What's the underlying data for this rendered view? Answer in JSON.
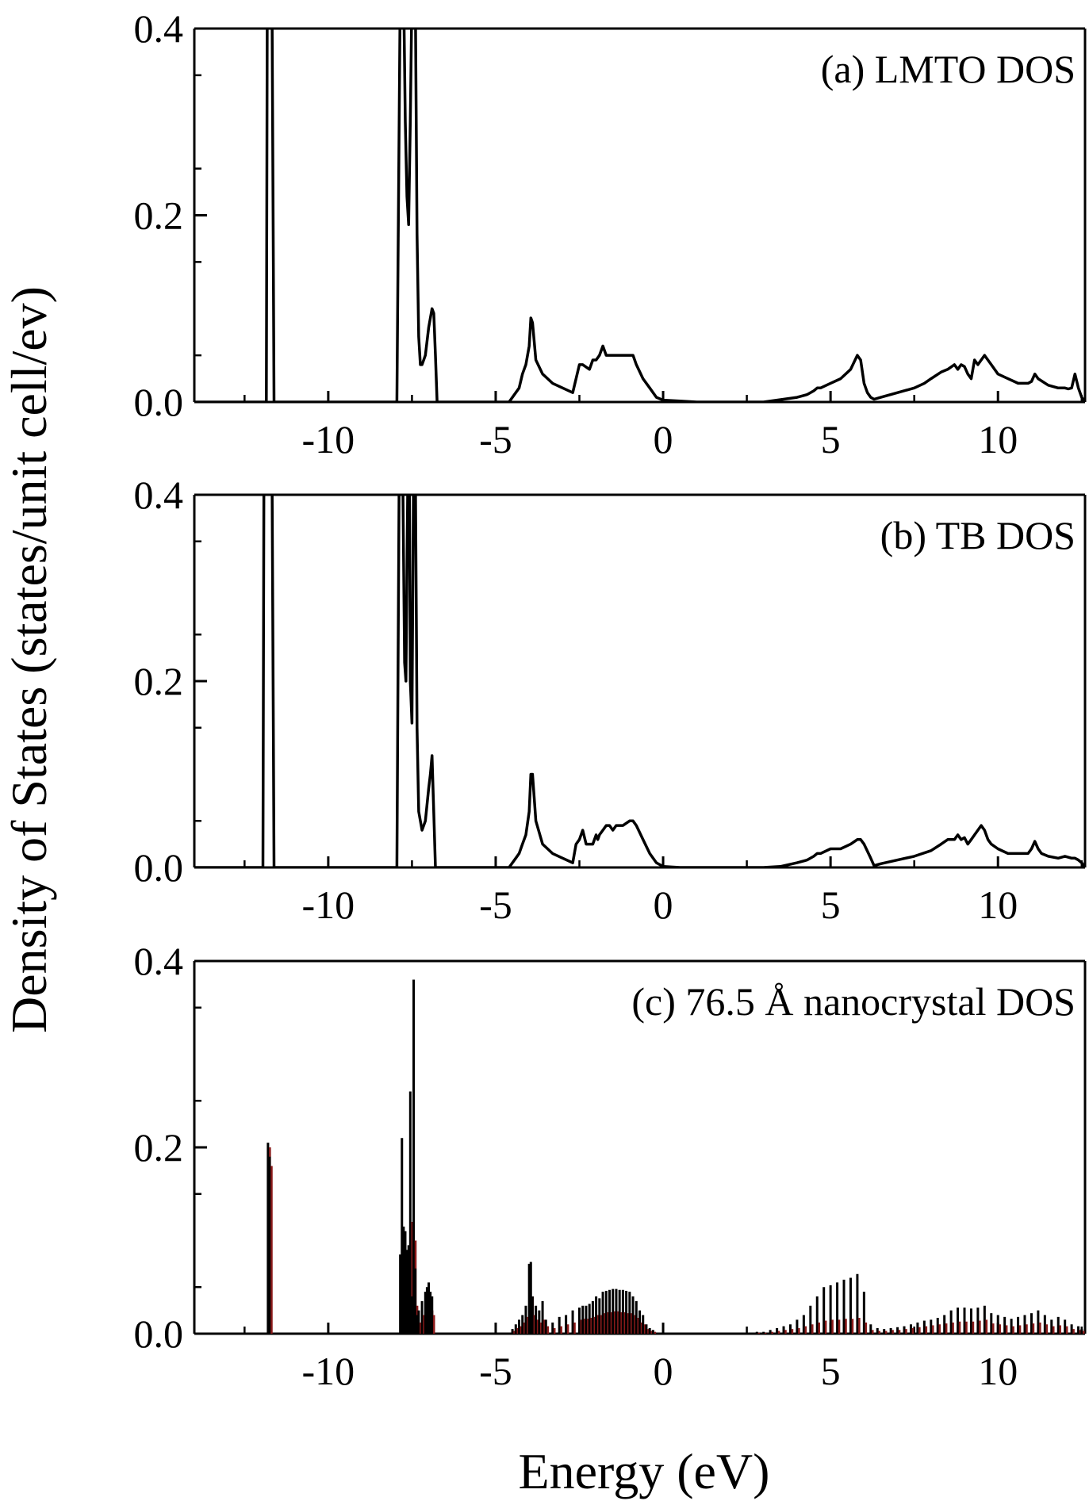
{
  "chart_data": {
    "type": "line",
    "title": "",
    "xlabel": "Energy (eV)",
    "ylabel": "Density of States (states/unit cell/ev)",
    "xlim": [
      -14,
      12.6
    ],
    "ylim": [
      0,
      0.4
    ],
    "x_ticks": [
      -10,
      -5,
      0,
      5,
      10
    ],
    "x_tick_labels": [
      "-10",
      "-5",
      "0",
      "5",
      "10"
    ],
    "y_ticks": [
      0,
      0.2,
      0.4
    ],
    "y_tick_labels": [
      "0.0",
      "0.2",
      "0.4"
    ],
    "grid": false,
    "line_color": "#000000",
    "secondary_color": "#8b1a1a",
    "panels": [
      {
        "label": "(a) LMTO DOS",
        "kind": "line",
        "x": [
          -14,
          -11.85,
          -11.82,
          -11.78,
          -11.72,
          -11.68,
          -11.62,
          -7.95,
          -7.85,
          -7.8,
          -7.75,
          -7.7,
          -7.65,
          -7.6,
          -7.55,
          -7.5,
          -7.45,
          -7.4,
          -7.35,
          -7.3,
          -7.25,
          -7.2,
          -7.1,
          -7.0,
          -6.9,
          -6.85,
          -6.8,
          -6.75,
          -4.6,
          -4.4,
          -4.3,
          -4.2,
          -4.1,
          -4.0,
          -3.95,
          -3.9,
          -3.8,
          -3.6,
          -3.3,
          -3.0,
          -2.7,
          -2.5,
          -2.4,
          -2.2,
          -2.1,
          -2.0,
          -1.9,
          -1.8,
          -1.7,
          -1.5,
          -1.2,
          -0.9,
          -0.8,
          -0.6,
          -0.4,
          -0.2,
          0.0,
          0.5,
          1.0,
          2.0,
          3.0,
          4.0,
          4.3,
          4.5,
          4.6,
          4.7,
          5.0,
          5.3,
          5.6,
          5.8,
          5.9,
          6.0,
          6.1,
          6.2,
          6.3,
          6.5,
          7.0,
          7.5,
          7.8,
          8.0,
          8.3,
          8.5,
          8.7,
          8.8,
          8.9,
          9.0,
          9.1,
          9.2,
          9.3,
          9.4,
          9.5,
          9.6,
          9.8,
          10.0,
          10.3,
          10.6,
          10.9,
          11.0,
          11.1,
          11.2,
          11.5,
          11.8,
          12.0,
          12.1,
          12.2,
          12.3,
          12.4,
          12.5,
          12.6
        ],
        "y": [
          0,
          0,
          0.5,
          0.5,
          0.5,
          0.5,
          0,
          0,
          0.45,
          0.45,
          0.45,
          0.3,
          0.22,
          0.19,
          0.3,
          0.45,
          0.45,
          0.45,
          0.18,
          0.07,
          0.04,
          0.04,
          0.05,
          0.08,
          0.1,
          0.095,
          0.05,
          0,
          0,
          0.01,
          0.015,
          0.03,
          0.04,
          0.06,
          0.09,
          0.085,
          0.045,
          0.03,
          0.02,
          0.015,
          0.01,
          0.04,
          0.04,
          0.035,
          0.045,
          0.045,
          0.05,
          0.06,
          0.05,
          0.05,
          0.05,
          0.05,
          0.04,
          0.025,
          0.015,
          0.005,
          0.002,
          0.001,
          0,
          0,
          0,
          0.005,
          0.008,
          0.012,
          0.015,
          0.015,
          0.02,
          0.025,
          0.035,
          0.05,
          0.045,
          0.02,
          0.01,
          0.005,
          0.003,
          0.005,
          0.01,
          0.015,
          0.02,
          0.025,
          0.032,
          0.035,
          0.04,
          0.035,
          0.04,
          0.038,
          0.03,
          0.025,
          0.045,
          0.04,
          0.045,
          0.05,
          0.04,
          0.03,
          0.025,
          0.02,
          0.02,
          0.022,
          0.03,
          0.025,
          0.018,
          0.015,
          0.015,
          0.014,
          0.015,
          0.03,
          0.015,
          0.005,
          0
        ]
      },
      {
        "label": "(b) TB DOS",
        "kind": "line",
        "x": [
          -14,
          -11.95,
          -11.92,
          -11.85,
          -11.8,
          -11.72,
          -11.68,
          -11.62,
          -7.95,
          -7.88,
          -7.82,
          -7.78,
          -7.72,
          -7.68,
          -7.62,
          -7.58,
          -7.55,
          -7.5,
          -7.45,
          -7.4,
          -7.35,
          -7.3,
          -7.2,
          -7.1,
          -7.0,
          -6.95,
          -6.9,
          -6.8,
          -4.6,
          -4.4,
          -4.3,
          -4.2,
          -4.1,
          -4.0,
          -3.95,
          -3.9,
          -3.8,
          -3.6,
          -3.3,
          -3.0,
          -2.7,
          -2.6,
          -2.5,
          -2.4,
          -2.3,
          -2.1,
          -2.0,
          -1.95,
          -1.9,
          -1.8,
          -1.7,
          -1.6,
          -1.5,
          -1.4,
          -1.2,
          -1.0,
          -0.9,
          -0.8,
          -0.6,
          -0.4,
          -0.2,
          0.0,
          0.5,
          1.0,
          2.0,
          3.0,
          3.5,
          4.0,
          4.3,
          4.5,
          4.6,
          4.7,
          5.0,
          5.3,
          5.6,
          5.8,
          5.9,
          6.0,
          6.2,
          6.3,
          6.5,
          7.0,
          7.5,
          8.0,
          8.3,
          8.5,
          8.7,
          8.8,
          8.9,
          9.0,
          9.1,
          9.2,
          9.3,
          9.4,
          9.5,
          9.6,
          9.7,
          9.8,
          10.0,
          10.3,
          10.6,
          10.9,
          11.0,
          11.1,
          11.2,
          11.3,
          11.5,
          11.8,
          12.0,
          12.2,
          12.3,
          12.4,
          12.5,
          12.6
        ],
        "y": [
          0,
          0,
          0.5,
          0.5,
          0.5,
          0.5,
          0.5,
          0,
          0,
          0.45,
          0.45,
          0.45,
          0.22,
          0.2,
          0.45,
          0.45,
          0.2,
          0.155,
          0.45,
          0.45,
          0.15,
          0.06,
          0.04,
          0.05,
          0.085,
          0.1,
          0.12,
          0,
          0,
          0.01,
          0.015,
          0.025,
          0.035,
          0.06,
          0.1,
          0.1,
          0.05,
          0.025,
          0.015,
          0.01,
          0.005,
          0.025,
          0.03,
          0.04,
          0.025,
          0.025,
          0.035,
          0.03,
          0.035,
          0.04,
          0.045,
          0.045,
          0.04,
          0.045,
          0.045,
          0.05,
          0.05,
          0.045,
          0.03,
          0.015,
          0.005,
          0.001,
          0,
          0,
          0,
          0,
          0.001,
          0.005,
          0.008,
          0.012,
          0.015,
          0.015,
          0.02,
          0.02,
          0.025,
          0.03,
          0.03,
          0.025,
          0.01,
          0.002,
          0.004,
          0.008,
          0.012,
          0.018,
          0.025,
          0.03,
          0.03,
          0.035,
          0.03,
          0.032,
          0.025,
          0.03,
          0.035,
          0.04,
          0.045,
          0.04,
          0.03,
          0.025,
          0.02,
          0.015,
          0.015,
          0.015,
          0.02,
          0.028,
          0.02,
          0.015,
          0.012,
          0.01,
          0.012,
          0.01,
          0.01,
          0.008,
          0.005,
          0
        ]
      },
      {
        "label": "(c) 76.5 Å nanocrystal DOS",
        "kind": "sticks",
        "x": [
          -11.8,
          -11.75,
          -7.85,
          -7.8,
          -7.75,
          -7.7,
          -7.65,
          -7.6,
          -7.55,
          -7.5,
          -7.45,
          -7.4,
          -7.35,
          -7.3,
          -7.2,
          -7.1,
          -7.05,
          -7.0,
          -6.95,
          -6.9,
          -4.5,
          -4.4,
          -4.3,
          -4.2,
          -4.1,
          -4.0,
          -3.95,
          -3.9,
          -3.8,
          -3.7,
          -3.6,
          -3.5,
          -3.3,
          -3.1,
          -2.9,
          -2.7,
          -2.5,
          -2.4,
          -2.3,
          -2.2,
          -2.1,
          -2.0,
          -1.9,
          -1.8,
          -1.7,
          -1.6,
          -1.5,
          -1.4,
          -1.3,
          -1.2,
          -1.1,
          -1.0,
          -0.9,
          -0.8,
          -0.7,
          -0.6,
          -0.5,
          -0.4,
          -0.3,
          2.8,
          3.0,
          3.2,
          3.4,
          3.6,
          3.8,
          4.0,
          4.2,
          4.4,
          4.6,
          4.8,
          5.0,
          5.2,
          5.4,
          5.6,
          5.8,
          6.0,
          6.2,
          6.4,
          6.6,
          6.8,
          7.0,
          7.2,
          7.4,
          7.6,
          7.8,
          8.0,
          8.2,
          8.4,
          8.6,
          8.8,
          9.0,
          9.2,
          9.4,
          9.6,
          9.8,
          10.0,
          10.2,
          10.4,
          10.6,
          10.8,
          11.0,
          11.2,
          11.4,
          11.6,
          11.8,
          12.0,
          12.2,
          12.4,
          12.5
        ],
        "y": [
          0.205,
          0.19,
          0.085,
          0.21,
          0.115,
          0.11,
          0.09,
          0.095,
          0.26,
          0.04,
          0.38,
          0.07,
          0.02,
          0.025,
          0.035,
          0.045,
          0.05,
          0.055,
          0.045,
          0.04,
          0.005,
          0.01,
          0.015,
          0.02,
          0.03,
          0.075,
          0.077,
          0.04,
          0.03,
          0.025,
          0.035,
          0.015,
          0.012,
          0.018,
          0.02,
          0.025,
          0.028,
          0.03,
          0.03,
          0.032,
          0.035,
          0.04,
          0.038,
          0.045,
          0.046,
          0.047,
          0.048,
          0.048,
          0.047,
          0.047,
          0.046,
          0.045,
          0.04,
          0.035,
          0.025,
          0.02,
          0.01,
          0.006,
          0.004,
          0.002,
          0.002,
          0.004,
          0.006,
          0.008,
          0.01,
          0.015,
          0.02,
          0.03,
          0.04,
          0.05,
          0.052,
          0.055,
          0.058,
          0.06,
          0.064,
          0.045,
          0.01,
          0.006,
          0.005,
          0.006,
          0.007,
          0.008,
          0.01,
          0.012,
          0.014,
          0.015,
          0.017,
          0.02,
          0.025,
          0.028,
          0.028,
          0.027,
          0.028,
          0.03,
          0.022,
          0.02,
          0.018,
          0.016,
          0.018,
          0.02,
          0.022,
          0.025,
          0.02,
          0.015,
          0.018,
          0.015,
          0.01,
          0.008,
          0.005
        ],
        "y_secondary": [
          0.2,
          0.18,
          0.04,
          0.1,
          0.06,
          0.05,
          0.04,
          0.04,
          0.12,
          0.02,
          0.1,
          0.03,
          0.01,
          0.012,
          0.02,
          0.025,
          0.03,
          0.03,
          0.025,
          0.02,
          0.003,
          0.006,
          0.008,
          0.012,
          0.018,
          0.04,
          0.04,
          0.02,
          0.015,
          0.012,
          0.015,
          0.008,
          0.006,
          0.008,
          0.01,
          0.012,
          0.015,
          0.016,
          0.016,
          0.017,
          0.018,
          0.02,
          0.02,
          0.022,
          0.023,
          0.023,
          0.024,
          0.024,
          0.023,
          0.023,
          0.022,
          0.022,
          0.02,
          0.017,
          0.012,
          0.01,
          0.005,
          0.003,
          0.002,
          0.001,
          0.001,
          0.002,
          0.003,
          0.004,
          0.005,
          0.006,
          0.008,
          0.01,
          0.012,
          0.014,
          0.015,
          0.015,
          0.016,
          0.016,
          0.017,
          0.012,
          0.004,
          0.003,
          0.003,
          0.004,
          0.004,
          0.005,
          0.006,
          0.007,
          0.008,
          0.009,
          0.01,
          0.011,
          0.012,
          0.013,
          0.013,
          0.013,
          0.014,
          0.015,
          0.011,
          0.01,
          0.009,
          0.008,
          0.009,
          0.01,
          0.011,
          0.012,
          0.01,
          0.008,
          0.009,
          0.008,
          0.005,
          0.004,
          0.003
        ]
      }
    ]
  }
}
